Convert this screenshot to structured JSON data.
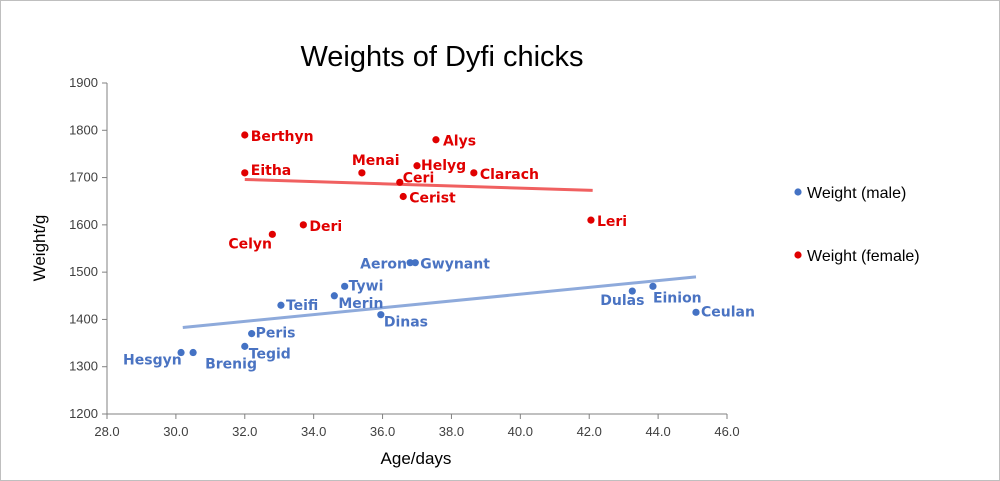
{
  "chart_data": {
    "type": "scatter",
    "title": "Weights of Dyfi chicks",
    "xlabel": "Age/days",
    "ylabel": "Weight/g",
    "xlim": [
      28.0,
      46.0
    ],
    "ylim": [
      1200,
      1900
    ],
    "x_ticks": [
      "28.0",
      "30.0",
      "32.0",
      "34.0",
      "36.0",
      "38.0",
      "40.0",
      "42.0",
      "44.0",
      "46.0"
    ],
    "y_ticks": [
      "1200",
      "1300",
      "1400",
      "1500",
      "1600",
      "1700",
      "1800",
      "1900"
    ],
    "grid": false,
    "legend_position": "right",
    "series": [
      {
        "name": "Weight (male)",
        "color": "#4472c4",
        "label_color": "#4a73c2",
        "trendline_color": "#8eaadb",
        "trendline": [
          [
            30.2,
            1383
          ],
          [
            45.1,
            1490
          ]
        ],
        "points": [
          {
            "x": 30.15,
            "y": 1330,
            "label": "Hesgyn"
          },
          {
            "x": 30.5,
            "y": 1330,
            "label": "Brenig"
          },
          {
            "x": 32.0,
            "y": 1343,
            "label": "Tegid"
          },
          {
            "x": 32.2,
            "y": 1370,
            "label": "Peris"
          },
          {
            "x": 33.05,
            "y": 1430,
            "label": "Teifi"
          },
          {
            "x": 34.6,
            "y": 1450,
            "label": "Merin"
          },
          {
            "x": 34.9,
            "y": 1470,
            "label": "Tywi"
          },
          {
            "x": 35.95,
            "y": 1410,
            "label": "Dinas"
          },
          {
            "x": 36.8,
            "y": 1520,
            "label": "Aeron"
          },
          {
            "x": 36.95,
            "y": 1520,
            "label": "Gwynant"
          },
          {
            "x": 43.25,
            "y": 1460,
            "label": "Dulas"
          },
          {
            "x": 43.85,
            "y": 1470,
            "label": "Einion"
          },
          {
            "x": 45.1,
            "y": 1415,
            "label": "Ceulan"
          }
        ]
      },
      {
        "name": "Weight (female)",
        "color": "#e00000",
        "label_color": "#e00000",
        "trendline_color": "#f06060",
        "trendline": [
          [
            32.0,
            1696
          ],
          [
            42.1,
            1673
          ]
        ],
        "points": [
          {
            "x": 32.0,
            "y": 1790,
            "label": "Berthyn"
          },
          {
            "x": 32.0,
            "y": 1710,
            "label": "Eitha"
          },
          {
            "x": 32.8,
            "y": 1580,
            "label": "Celyn"
          },
          {
            "x": 33.7,
            "y": 1600,
            "label": "Deri"
          },
          {
            "x": 35.4,
            "y": 1710,
            "label": "Menai"
          },
          {
            "x": 36.5,
            "y": 1690,
            "label": "Ceri"
          },
          {
            "x": 36.6,
            "y": 1660,
            "label": "Cerist"
          },
          {
            "x": 37.0,
            "y": 1725,
            "label": "Helyg"
          },
          {
            "x": 37.55,
            "y": 1780,
            "label": "Alys"
          },
          {
            "x": 38.65,
            "y": 1710,
            "label": "Clarach"
          },
          {
            "x": 42.05,
            "y": 1610,
            "label": "Leri"
          }
        ]
      }
    ]
  }
}
